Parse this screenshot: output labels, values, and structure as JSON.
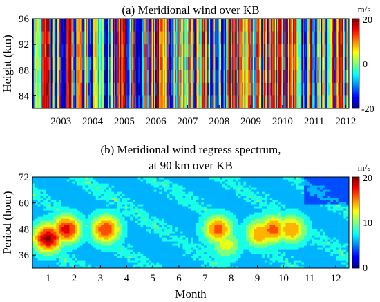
{
  "chart_data": [
    {
      "type": "heatmap",
      "title": "(a) Meridional wind over KB",
      "xlabel": "",
      "ylabel": "Height (km)",
      "x_ticks": [
        "2003",
        "2004",
        "2005",
        "2006",
        "2007",
        "2008",
        "2009",
        "2010",
        "2011",
        "2012"
      ],
      "y_ticks": [
        "84",
        "88",
        "92",
        "96"
      ],
      "x_range": [
        2002.6,
        2012.6
      ],
      "y_range": [
        82,
        96
      ],
      "colorbar": {
        "unit": "m/s",
        "ticks": [
          "20",
          "0",
          "-20"
        ],
        "min": -20,
        "max": 20
      },
      "grid": false
    },
    {
      "type": "heatmap",
      "title": "(b) Meridional wind regress spectrum,",
      "subtitle": "at 90 km over KB",
      "xlabel": "Month",
      "ylabel": "Period (hour)",
      "x_ticks": [
        "1",
        "2",
        "3",
        "4",
        "5",
        "6",
        "7",
        "8",
        "9",
        "10",
        "11",
        "12"
      ],
      "y_ticks": [
        "36",
        "48",
        "60",
        "72"
      ],
      "x_range": [
        0.4,
        12.5
      ],
      "y_range": [
        30,
        72
      ],
      "colorbar": {
        "unit": "m/s",
        "ticks": [
          "20",
          "10",
          "0"
        ],
        "min": 0,
        "max": 20
      },
      "grid": false,
      "maxima": [
        {
          "month": 1.0,
          "period": 44,
          "value": 20
        },
        {
          "month": 1.7,
          "period": 48,
          "value": 18
        },
        {
          "month": 3.2,
          "period": 48,
          "value": 17
        },
        {
          "month": 7.5,
          "period": 48,
          "value": 16
        },
        {
          "month": 7.8,
          "period": 41,
          "value": 12
        },
        {
          "month": 9.1,
          "period": 46,
          "value": 15
        },
        {
          "month": 9.6,
          "period": 48,
          "value": 16
        },
        {
          "month": 10.3,
          "period": 48,
          "value": 15
        }
      ]
    }
  ]
}
